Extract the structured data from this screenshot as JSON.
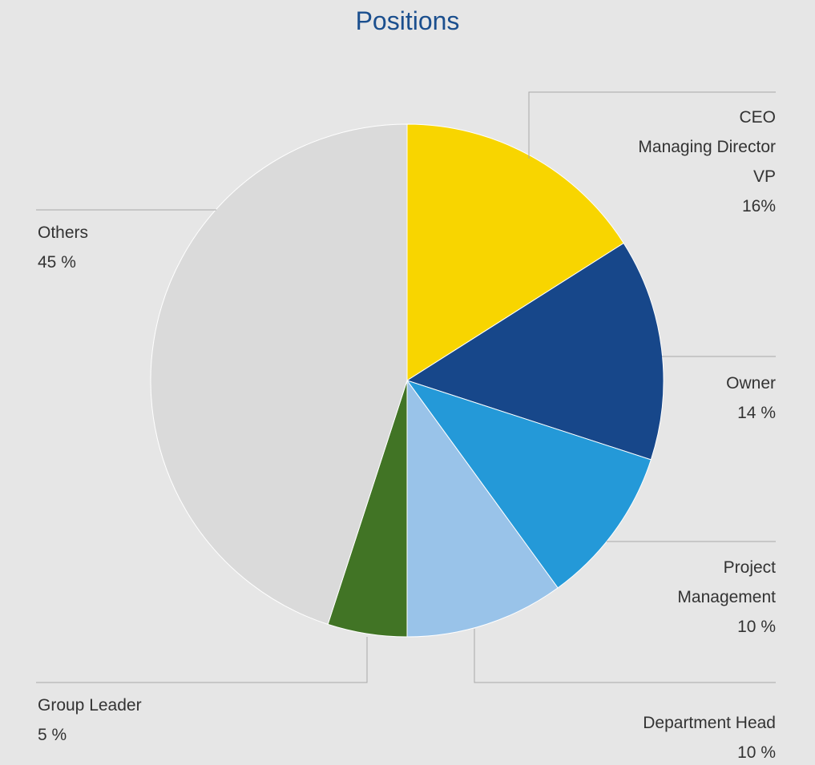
{
  "chart_data": {
    "type": "pie",
    "title": "Positions",
    "categories": [
      "CEO\nManaging Director\nVP",
      "Owner",
      "Project\nManagement",
      "Department Head",
      "Group Leader",
      "Others"
    ],
    "values": [
      16,
      14,
      10,
      10,
      5,
      45
    ],
    "value_labels": [
      "16%",
      "14 %",
      "10 %",
      "10 %",
      "5 %",
      "45 %"
    ],
    "colors": [
      "#f8d500",
      "#17478a",
      "#2499d8",
      "#99c3e9",
      "#417425",
      "#dadada"
    ]
  }
}
